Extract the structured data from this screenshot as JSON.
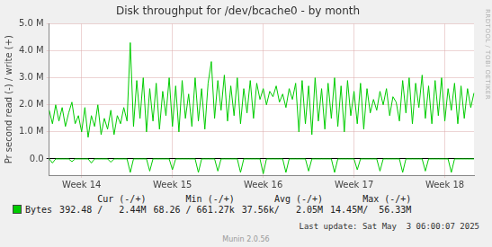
{
  "chart_data": {
    "type": "line",
    "title": "Disk throughput for /dev/bcache0 - by month",
    "y_label": "Pr second read (-) / write (+)",
    "categories": [
      null,
      null,
      null,
      null,
      null,
      null,
      null,
      null,
      null,
      null,
      "Week 14",
      null,
      null,
      null,
      null,
      null,
      null,
      null,
      null,
      null,
      null,
      null,
      null,
      null,
      null,
      null,
      null,
      null,
      null,
      null,
      null,
      null,
      null,
      null,
      null,
      null,
      null,
      null,
      "Week 15",
      null,
      null,
      null,
      null,
      null,
      null,
      null,
      null,
      null,
      null,
      null,
      null,
      null,
      null,
      null,
      null,
      null,
      null,
      null,
      null,
      null,
      null,
      null,
      null,
      null,
      null,
      null,
      "Week 16",
      null,
      null,
      null,
      null,
      null,
      null,
      null,
      null,
      null,
      null,
      null,
      null,
      null,
      null,
      null,
      null,
      null,
      null,
      null,
      null,
      null,
      null,
      null,
      null,
      null,
      null,
      null,
      "Week 17",
      null,
      null,
      null,
      null,
      null,
      null,
      null,
      null,
      null,
      null,
      null,
      null,
      null,
      null,
      null,
      null,
      null,
      null,
      null,
      null,
      null,
      null,
      null,
      null,
      null,
      null,
      null,
      "Week 18",
      null,
      null,
      null,
      null,
      null,
      null,
      null,
      null,
      null
    ],
    "series": [
      {
        "name": "Bytes",
        "color": "#00cc00",
        "values": [
          1800000,
          1300000,
          2000000,
          1400000,
          1900000,
          1200000,
          1700000,
          2100000,
          1300000,
          1600000,
          1000000,
          1900000,
          800000,
          1600000,
          1200000,
          2000000,
          900000,
          1500000,
          1100000,
          1800000,
          900000,
          1600000,
          1300000,
          1900000,
          1400000,
          4300000,
          1200000,
          2900000,
          1500000,
          3000000,
          1000000,
          2600000,
          1400000,
          2800000,
          1100000,
          2500000,
          1600000,
          3000000,
          1200000,
          2700000,
          1000000,
          2900000,
          1500000,
          2400000,
          1200000,
          3000000,
          1400000,
          2600000,
          1100000,
          2800000,
          3600000,
          1500000,
          2900000,
          1800000,
          3100000,
          1400000,
          2700000,
          1600000,
          3000000,
          1300000,
          2600000,
          1700000,
          2900000,
          1500000,
          2800000,
          2200000,
          2600000,
          2000000,
          2500000,
          2300000,
          2700000,
          2100000,
          2400000,
          1900000,
          2600000,
          2200000,
          2800000,
          1000000,
          2900000,
          1300000,
          2700000,
          900000,
          3000000,
          1400000,
          2600000,
          1100000,
          2800000,
          1500000,
          3000000,
          1200000,
          2700000,
          1000000,
          2900000,
          1600000,
          2500000,
          1300000,
          2800000,
          1100000,
          2600000,
          1700000,
          2200000,
          1800000,
          2500000,
          2000000,
          2600000,
          1600000,
          2300000,
          2100000,
          1400000,
          2900000,
          1700000,
          3000000,
          1300000,
          2800000,
          1900000,
          3100000,
          1500000,
          2700000,
          1300000,
          2900000,
          1600000,
          3000000,
          1400000,
          2600000,
          1800000,
          2800000,
          1300000,
          2700000,
          1500000,
          2600000,
          1900000,
          2440000
        ]
      },
      {
        "name": "Bytes",
        "color": "#00cc00",
        "values": [
          0,
          -150000,
          0,
          0,
          0,
          0,
          0,
          -100000,
          0,
          0,
          0,
          0,
          0,
          -150000,
          0,
          0,
          0,
          0,
          0,
          -120000,
          0,
          0,
          0,
          0,
          0,
          -500000,
          0,
          0,
          0,
          0,
          0,
          -450000,
          0,
          0,
          0,
          0,
          0,
          0,
          -400000,
          0,
          0,
          0,
          0,
          0,
          0,
          0,
          -500000,
          0,
          0,
          0,
          0,
          0,
          -450000,
          0,
          0,
          0,
          0,
          0,
          0,
          -500000,
          0,
          0,
          0,
          0,
          0,
          0,
          -550000,
          0,
          0,
          0,
          0,
          0,
          0,
          -500000,
          0,
          0,
          0,
          0,
          0,
          0,
          -450000,
          0,
          0,
          0,
          0,
          0,
          0,
          0,
          -500000,
          0,
          0,
          0,
          0,
          0,
          0,
          -400000,
          0,
          0,
          0,
          0,
          0,
          0,
          -450000,
          0,
          0,
          0,
          0,
          0,
          0,
          -500000,
          0,
          0,
          0,
          0,
          0,
          0,
          -450000,
          0,
          0,
          0,
          0,
          0,
          0,
          0,
          -500000,
          0,
          0,
          0,
          0,
          0,
          0,
          0
        ]
      }
    ],
    "ylim": [
      -600000,
      5000000
    ],
    "yticks": [
      {
        "value": 0,
        "label": "0.0"
      },
      {
        "value": 1000000,
        "label": "1.0 M"
      },
      {
        "value": 2000000,
        "label": "2.0 M"
      },
      {
        "value": 3000000,
        "label": "3.0 M"
      },
      {
        "value": 4000000,
        "label": "4.0 M"
      },
      {
        "value": 5000000,
        "label": "5.0 M"
      }
    ],
    "grid": true,
    "legend_table": {
      "columns": [
        "Cur (-/+)",
        "Min (-/+)",
        "Avg (-/+)",
        "Max (-/+)"
      ],
      "rows": [
        {
          "label": "Bytes",
          "cells": [
            "392.48 /   2.44M",
            "68.26 / 661.27k",
            "37.56k/   2.05M",
            "14.45M/  56.33M"
          ]
        }
      ]
    },
    "last_update": "Last update: Sat May  3 06:00:07 2025",
    "footer": "Munin 2.0.56",
    "watermark": "RRDTOOL / TOBI OETIKER"
  }
}
